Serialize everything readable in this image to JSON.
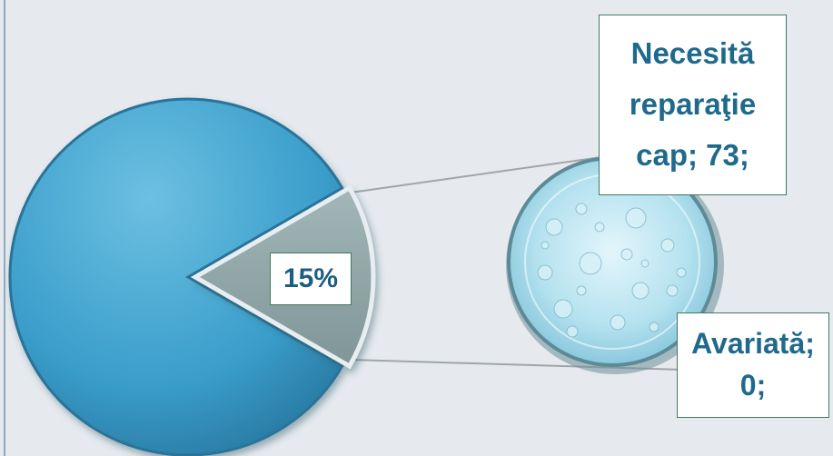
{
  "chart_data": {
    "type": "pie",
    "title": "",
    "slices": [
      {
        "label": "",
        "value": 85
      },
      {
        "label": "Necesită reparaţie cap",
        "value": 73,
        "percent_label": "15%"
      },
      {
        "label": "Avariată",
        "value": 0
      }
    ],
    "colors": {
      "main_slice": "#3fa1cd",
      "pulled_slice": "#8fa3a4",
      "secondary_circle": "#a9dbe9",
      "label_border": "#3d7a5f",
      "label_text": "#1f6a8c"
    },
    "labels": {
      "pulled_percent": "15%",
      "repair_line1": "Necesită",
      "repair_line2": "reparaţie",
      "repair_line3": "cap; 73;",
      "damaged_line1": "Avariată;",
      "damaged_line2": "0;"
    }
  }
}
